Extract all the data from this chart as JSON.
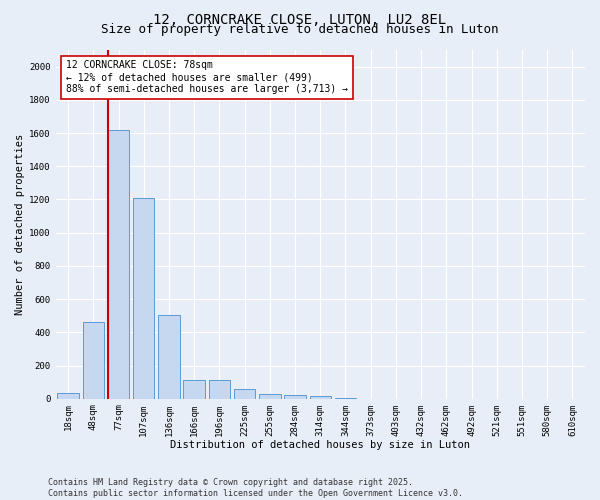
{
  "title1": "12, CORNCRAKE CLOSE, LUTON, LU2 8EL",
  "title2": "Size of property relative to detached houses in Luton",
  "xlabel": "Distribution of detached houses by size in Luton",
  "ylabel": "Number of detached properties",
  "categories": [
    "18sqm",
    "48sqm",
    "77sqm",
    "107sqm",
    "136sqm",
    "166sqm",
    "196sqm",
    "225sqm",
    "255sqm",
    "284sqm",
    "314sqm",
    "344sqm",
    "373sqm",
    "403sqm",
    "432sqm",
    "462sqm",
    "492sqm",
    "521sqm",
    "551sqm",
    "580sqm",
    "610sqm"
  ],
  "values": [
    35,
    460,
    1620,
    1210,
    505,
    115,
    115,
    60,
    30,
    25,
    15,
    5,
    0,
    0,
    0,
    0,
    0,
    0,
    0,
    0,
    0
  ],
  "bar_color": "#c5d8f0",
  "bar_edge_color": "#5b9bd5",
  "vline_color": "#cc0000",
  "annotation_text": "12 CORNCRAKE CLOSE: 78sqm\n← 12% of detached houses are smaller (499)\n88% of semi-detached houses are larger (3,713) →",
  "annotation_box_color": "white",
  "annotation_box_edge": "#cc0000",
  "ylim": [
    0,
    2100
  ],
  "yticks": [
    0,
    200,
    400,
    600,
    800,
    1000,
    1200,
    1400,
    1600,
    1800,
    2000
  ],
  "bg_color": "#e8eef8",
  "grid_color": "#ffffff",
  "footer1": "Contains HM Land Registry data © Crown copyright and database right 2025.",
  "footer2": "Contains public sector information licensed under the Open Government Licence v3.0.",
  "title_fontsize": 10,
  "subtitle_fontsize": 9,
  "axis_label_fontsize": 7.5,
  "tick_fontsize": 6.5,
  "annotation_fontsize": 7,
  "footer_fontsize": 6
}
